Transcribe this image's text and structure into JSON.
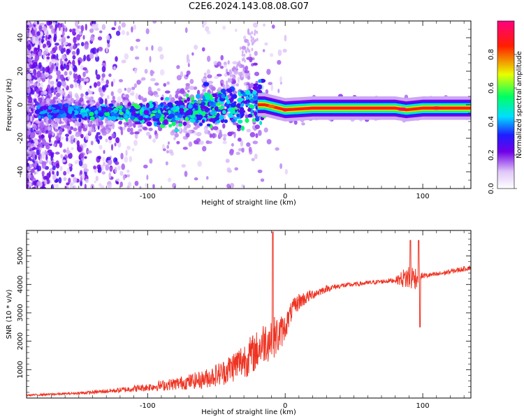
{
  "figure": {
    "title": "C2E6.2024.143.08.08.G07"
  },
  "chart_data": [
    {
      "type": "heatmap",
      "xlabel": "Height of straight line (km)",
      "ylabel": "Frequency (Hz)",
      "xlim": [
        -188,
        135
      ],
      "ylim": [
        -50,
        50
      ],
      "xticks": [
        -100,
        0,
        100
      ],
      "yticks": [
        -40,
        -20,
        0,
        20,
        40
      ],
      "grid": false,
      "colorbar": {
        "label": "Normalized spectral amplitude",
        "range": [
          0,
          1
        ],
        "ticks": [
          0.0,
          0.2,
          0.4,
          0.6,
          0.8
        ],
        "colormap": "white-purple-blue-cyan-green-yellow-red-magenta",
        "stops": [
          {
            "v": 0.0,
            "color": "#ffffff"
          },
          {
            "v": 0.1,
            "color": "#e0c8f8"
          },
          {
            "v": 0.22,
            "color": "#7000e8"
          },
          {
            "v": 0.32,
            "color": "#1e1eff"
          },
          {
            "v": 0.43,
            "color": "#00e0ff"
          },
          {
            "v": 0.55,
            "color": "#00ff60"
          },
          {
            "v": 0.68,
            "color": "#e8ff00"
          },
          {
            "v": 0.85,
            "color": "#ff1e00"
          },
          {
            "v": 1.0,
            "color": "#ff0080"
          }
        ]
      },
      "ridge": {
        "description_points": [
          {
            "x": -170,
            "y": -4
          },
          {
            "x": -120,
            "y": -5
          },
          {
            "x": -80,
            "y": -4
          },
          {
            "x": -50,
            "y": -1
          },
          {
            "x": -30,
            "y": 0
          },
          {
            "x": -15,
            "y": 0
          },
          {
            "x": -5,
            "y": -2
          },
          {
            "x": 0,
            "y": -3
          },
          {
            "x": 20,
            "y": -2
          },
          {
            "x": 80,
            "y": -2
          },
          {
            "x": 88,
            "y": -3
          },
          {
            "x": 100,
            "y": -2
          },
          {
            "x": 135,
            "y": -2
          }
        ]
      }
    },
    {
      "type": "line",
      "xlabel": "Height of straight line (km)",
      "ylabel": "SNR (10 * v/v)",
      "xlim": [
        -188,
        135
      ],
      "ylim": [
        0,
        5900
      ],
      "xticks": [
        -100,
        0,
        100
      ],
      "yticks": [
        1000,
        2000,
        3000,
        4000,
        5000
      ],
      "grid": false,
      "series": [
        {
          "color": "#ee3322",
          "x": [
            -188,
            -160,
            -140,
            -120,
            -100,
            -80,
            -60,
            -45,
            -35,
            -25,
            -20,
            -15,
            -10,
            -5,
            0,
            5,
            10,
            20,
            30,
            40,
            50,
            60,
            70,
            80,
            85,
            90,
            95,
            100,
            110,
            120,
            135
          ],
          "y": [
            100,
            150,
            200,
            280,
            380,
            500,
            650,
            900,
            1200,
            1500,
            1700,
            2000,
            2100,
            2200,
            2500,
            3100,
            3400,
            3650,
            3850,
            3950,
            4000,
            4050,
            4100,
            4150,
            4200,
            4250,
            4250,
            4300,
            4350,
            4450,
            4600
          ],
          "noise": [
            30,
            40,
            60,
            90,
            140,
            220,
            320,
            450,
            600,
            700,
            700,
            750,
            800,
            700,
            450,
            350,
            300,
            180,
            120,
            90,
            80,
            80,
            80,
            90,
            300,
            500,
            400,
            100,
            90,
            90,
            90
          ],
          "spikes": [
            {
              "x": -9,
              "y": 5850
            },
            {
              "x": 91,
              "y": 5550
            },
            {
              "x": 97,
              "y": 5550
            },
            {
              "x": 98,
              "y": 2500
            }
          ]
        }
      ]
    }
  ]
}
